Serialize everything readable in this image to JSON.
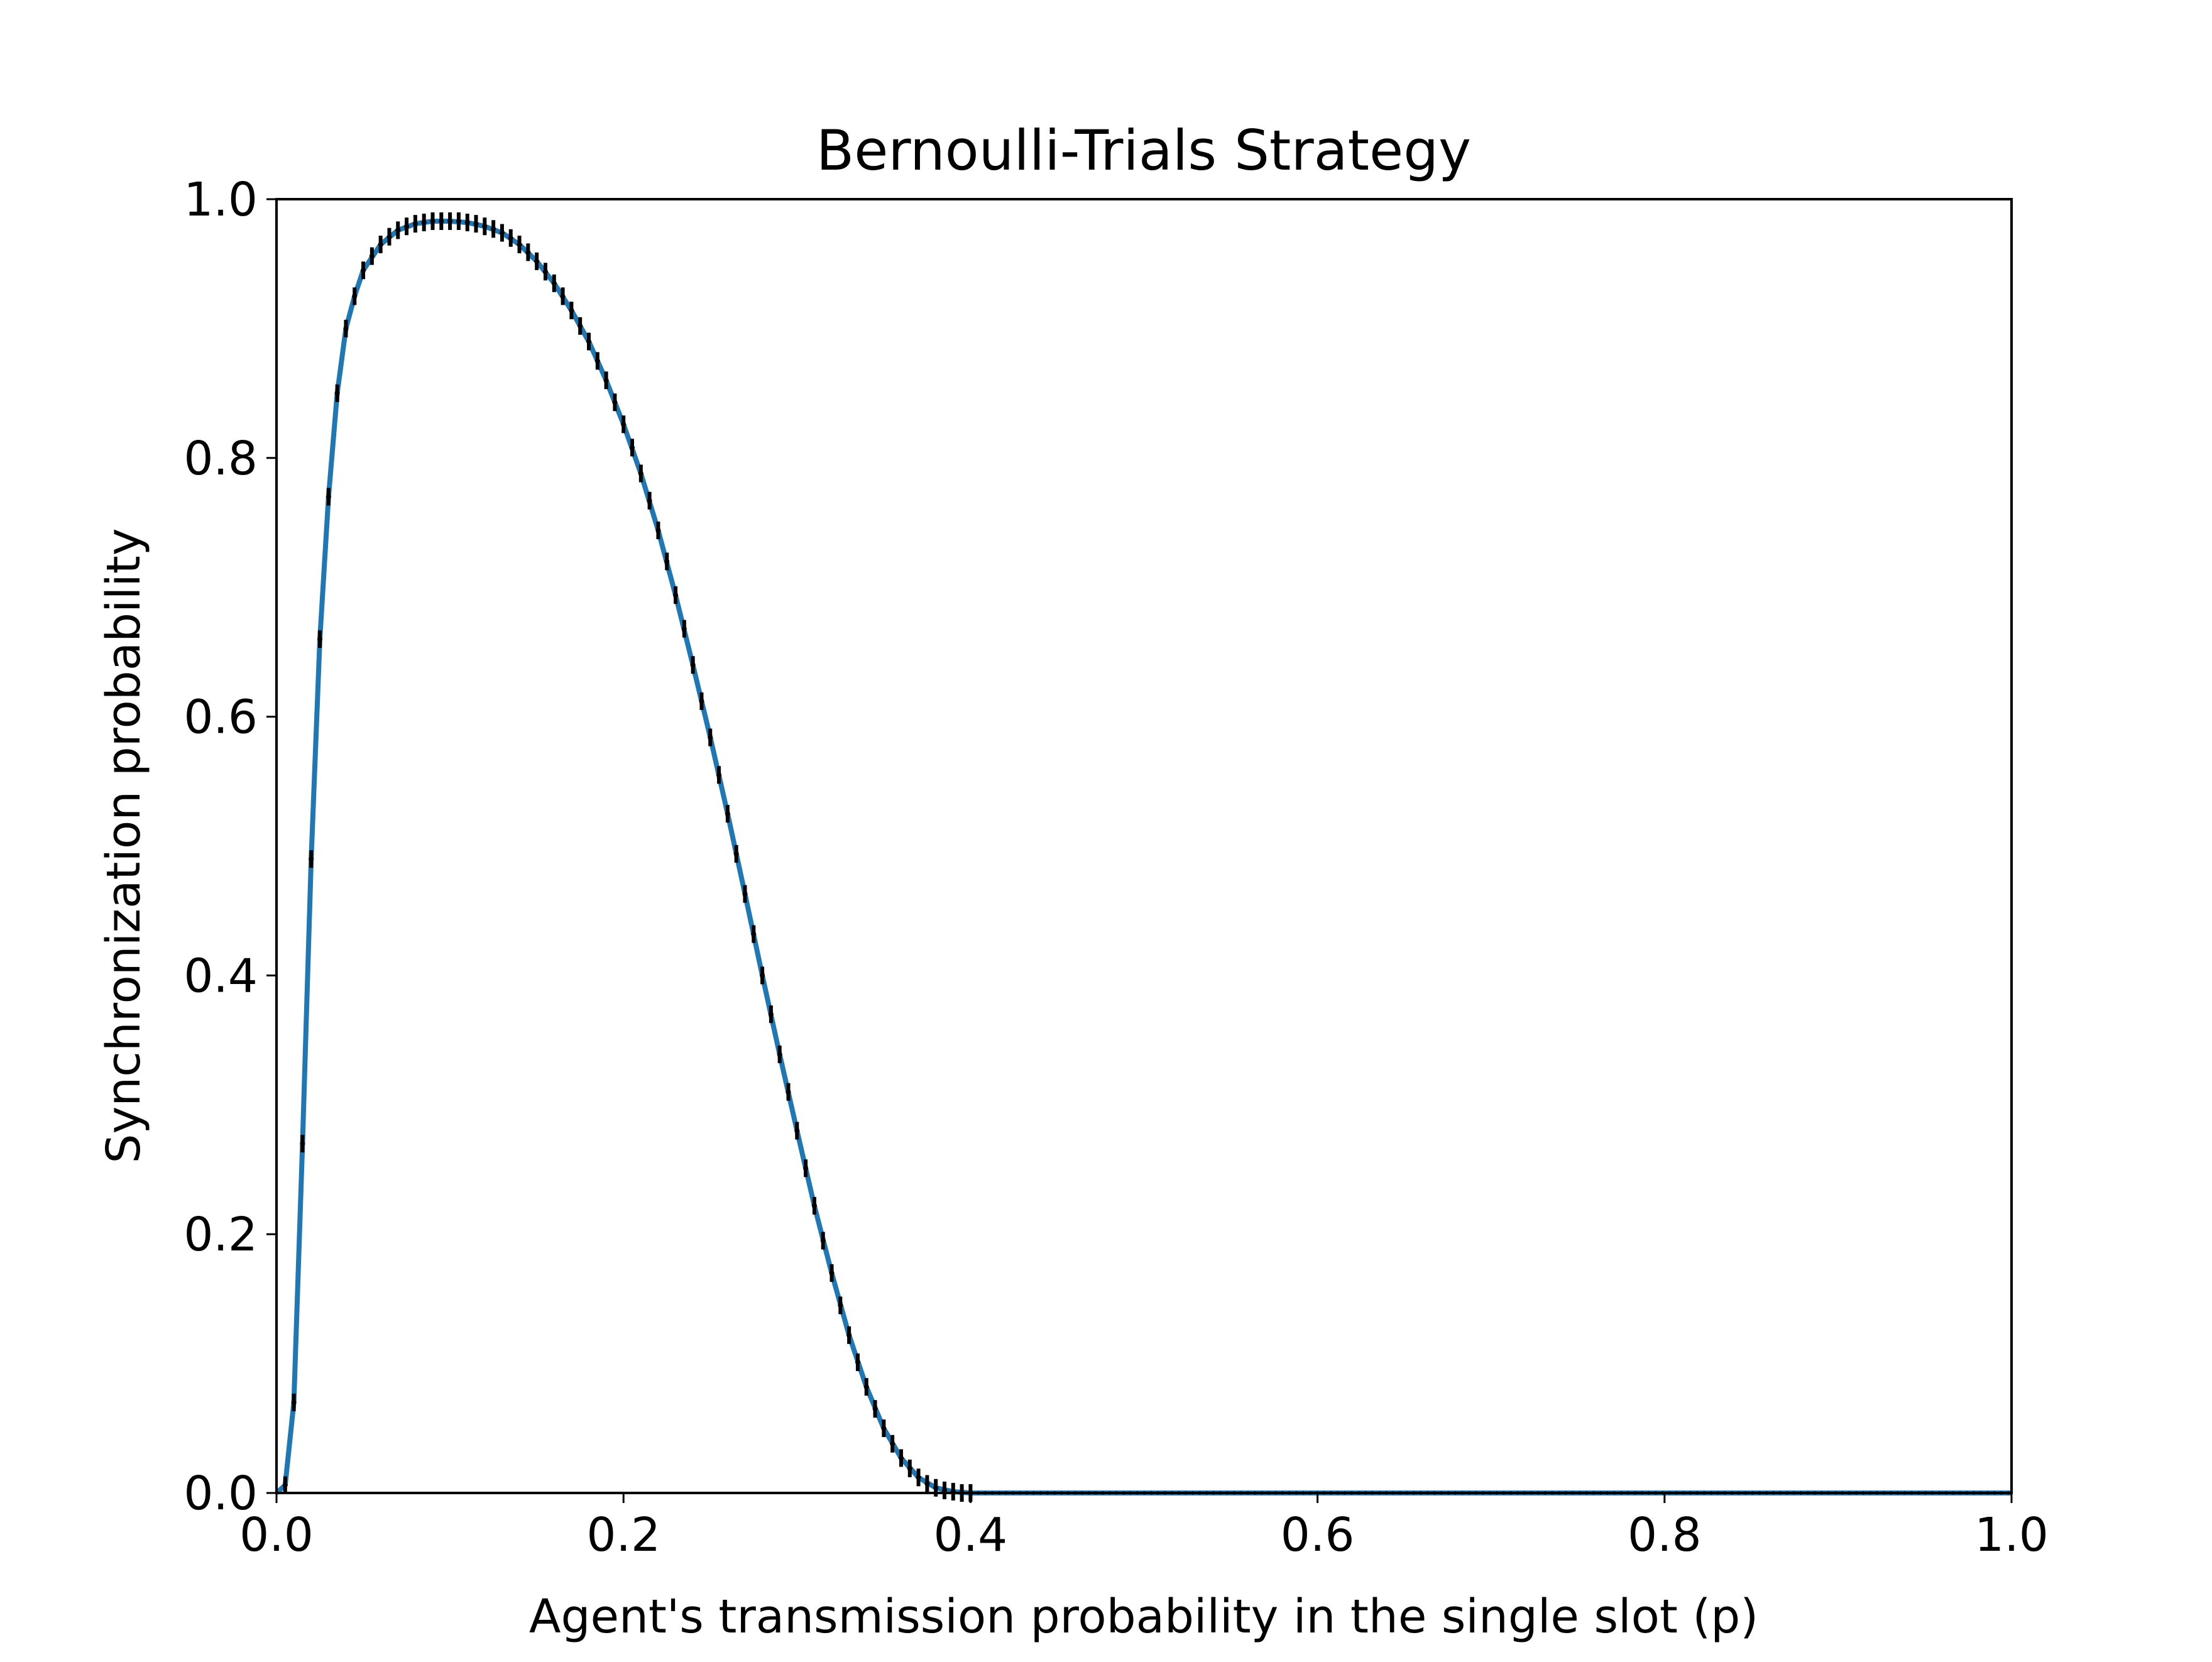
{
  "chart_data": {
    "type": "line",
    "title": "Bernoulli-Trials Strategy",
    "xlabel": "Agent's transmission probability in the single slot (p)",
    "ylabel": "Synchronization probability",
    "xlim": [
      0.0,
      1.0
    ],
    "ylim": [
      0.0,
      1.0
    ],
    "x_ticks": [
      "0.0",
      "0.2",
      "0.4",
      "0.6",
      "0.8",
      "1.0"
    ],
    "y_ticks": [
      "0.0",
      "0.2",
      "0.4",
      "0.6",
      "0.8",
      "1.0"
    ],
    "grid": false,
    "legend": "none",
    "colors": {
      "line": "#1f77b4",
      "markers": "#000000"
    },
    "series": [
      {
        "style": "line",
        "x": [
          0.0,
          0.005,
          0.01,
          0.015,
          0.02,
          0.025,
          0.03,
          0.035,
          0.04,
          0.045,
          0.05,
          0.06,
          0.07,
          0.08,
          0.09,
          0.1,
          0.11,
          0.12,
          0.13,
          0.14,
          0.15,
          0.16,
          0.17,
          0.18,
          0.19,
          0.2,
          0.21,
          0.22,
          0.23,
          0.24,
          0.25,
          0.26,
          0.27,
          0.28,
          0.29,
          0.3,
          0.31,
          0.32,
          0.33,
          0.34,
          0.35,
          0.36,
          0.37,
          0.38,
          0.39,
          0.4,
          0.5,
          0.6,
          0.7,
          0.8,
          0.9,
          1.0
        ],
        "y": [
          0.0,
          0.006,
          0.07,
          0.27,
          0.49,
          0.66,
          0.77,
          0.85,
          0.9,
          0.925,
          0.945,
          0.965,
          0.976,
          0.981,
          0.983,
          0.983,
          0.982,
          0.979,
          0.974,
          0.965,
          0.952,
          0.935,
          0.914,
          0.89,
          0.86,
          0.826,
          0.788,
          0.744,
          0.694,
          0.64,
          0.584,
          0.525,
          0.463,
          0.4,
          0.339,
          0.28,
          0.222,
          0.17,
          0.122,
          0.082,
          0.05,
          0.027,
          0.012,
          0.004,
          0.001,
          0.0,
          0.0,
          0.0,
          0.0,
          0.0,
          0.0,
          0.0
        ]
      },
      {
        "style": "markers",
        "x": [
          0.005,
          0.01,
          0.015,
          0.02,
          0.025,
          0.03,
          0.035,
          0.04,
          0.045,
          0.05,
          0.055,
          0.06,
          0.065,
          0.07,
          0.075,
          0.08,
          0.085,
          0.09,
          0.095,
          0.1,
          0.105,
          0.11,
          0.115,
          0.12,
          0.125,
          0.13,
          0.135,
          0.14,
          0.145,
          0.15,
          0.155,
          0.16,
          0.165,
          0.17,
          0.175,
          0.18,
          0.185,
          0.19,
          0.195,
          0.2,
          0.205,
          0.21,
          0.215,
          0.22,
          0.225,
          0.23,
          0.235,
          0.24,
          0.245,
          0.25,
          0.255,
          0.26,
          0.265,
          0.27,
          0.275,
          0.28,
          0.285,
          0.29,
          0.295,
          0.3,
          0.305,
          0.31,
          0.315,
          0.32,
          0.325,
          0.33,
          0.335,
          0.34,
          0.345,
          0.35,
          0.355,
          0.36,
          0.365,
          0.37,
          0.375,
          0.38,
          0.385,
          0.39,
          0.395,
          0.4
        ],
        "y": [
          0.006,
          0.07,
          0.27,
          0.49,
          0.66,
          0.77,
          0.85,
          0.9,
          0.925,
          0.945,
          0.956,
          0.965,
          0.971,
          0.976,
          0.979,
          0.981,
          0.982,
          0.983,
          0.983,
          0.983,
          0.983,
          0.982,
          0.981,
          0.979,
          0.977,
          0.974,
          0.97,
          0.965,
          0.959,
          0.952,
          0.944,
          0.935,
          0.925,
          0.914,
          0.902,
          0.89,
          0.875,
          0.86,
          0.843,
          0.826,
          0.808,
          0.788,
          0.767,
          0.744,
          0.72,
          0.694,
          0.668,
          0.64,
          0.612,
          0.584,
          0.555,
          0.525,
          0.494,
          0.463,
          0.432,
          0.4,
          0.37,
          0.339,
          0.31,
          0.28,
          0.251,
          0.222,
          0.195,
          0.17,
          0.145,
          0.122,
          0.101,
          0.082,
          0.065,
          0.05,
          0.038,
          0.027,
          0.019,
          0.012,
          0.007,
          0.004,
          0.002,
          0.001,
          0.0,
          0.0
        ]
      }
    ]
  }
}
